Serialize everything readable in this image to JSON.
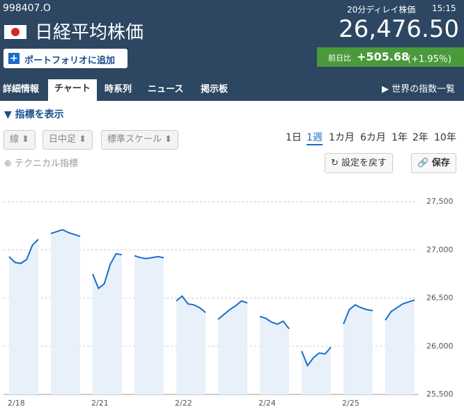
{
  "header": {
    "code": "998407.O",
    "name": "日経平均株価",
    "delay": "20分ディレイ株価",
    "time": "15:15",
    "price": "26,476.50",
    "add_button": "ポートフォリオに追加",
    "change_label": "前日比",
    "change": "+505.68",
    "change_pct": "(+1.95％)"
  },
  "tabs": [
    "詳細情報",
    "チャート",
    "時系列",
    "ニュース",
    "掲示板"
  ],
  "world_link": "世界の指数一覧",
  "toggle": "指標を表示",
  "selects": [
    "線",
    "日中足",
    "標準スケール"
  ],
  "ranges": [
    "1日",
    "1週",
    "1カ月",
    "6カ月",
    "1年",
    "2年",
    "10年"
  ],
  "technical": "テクニカル指標",
  "reset": "設定を戻す",
  "save": "保存",
  "chart_data": {
    "type": "line",
    "color": "#1a6ccc",
    "fill": "#e8f1fa",
    "grid": true,
    "categories": [
      "2/18",
      null,
      null,
      null,
      null,
      null,
      null,
      null,
      null,
      null,
      null,
      null,
      null,
      null,
      "2/21",
      null,
      null,
      null,
      null,
      null,
      null,
      null,
      null,
      null,
      null,
      null,
      null,
      null,
      "2/22",
      null,
      null,
      null,
      null,
      null,
      null,
      null,
      null,
      null,
      null,
      null,
      null,
      null,
      "2/24",
      null,
      null,
      null,
      null,
      null,
      null,
      null,
      null,
      null,
      null,
      null,
      null,
      null,
      "2/25",
      null,
      null,
      null,
      null,
      null,
      null,
      null,
      null,
      null,
      null,
      null,
      null
    ],
    "values": [
      26930,
      26870,
      26860,
      26900,
      27050,
      27110,
      null,
      27170,
      27190,
      27210,
      27180,
      27160,
      27140,
      null,
      26750,
      26600,
      26650,
      26850,
      26960,
      26950,
      null,
      26940,
      26920,
      26910,
      26920,
      26930,
      26920,
      null,
      26470,
      26520,
      26440,
      26430,
      26400,
      26350,
      null,
      26280,
      26330,
      26380,
      26420,
      26470,
      26450,
      null,
      26310,
      26290,
      26250,
      26230,
      26260,
      26180,
      null,
      25950,
      25800,
      25880,
      25930,
      25920,
      25990,
      null,
      26230,
      26380,
      26430,
      26400,
      26380,
      26370,
      null,
      26270,
      26360,
      26400,
      26440,
      26460,
      26480
    ],
    "ylim": [
      25500,
      27500
    ],
    "yticks": [
      {
        "value": 25500,
        "label": "25,500"
      },
      {
        "value": 26000,
        "label": "26,000"
      },
      {
        "value": 26500,
        "label": "26,500"
      },
      {
        "value": 27000,
        "label": "27,000"
      },
      {
        "value": 27500,
        "label": "27,500"
      }
    ]
  }
}
